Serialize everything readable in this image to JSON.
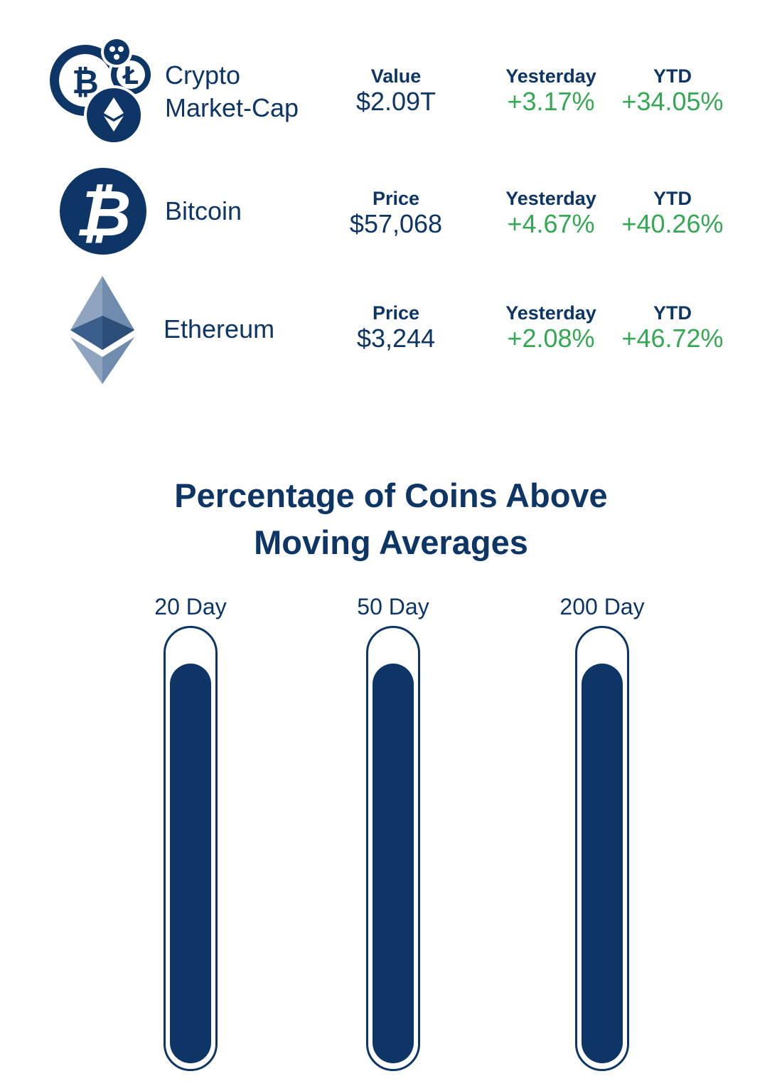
{
  "rows": [
    {
      "name_line1": "Crypto",
      "name_line2": "Market-Cap",
      "icon": "crypto-coins-icon",
      "primary_label": "Value",
      "primary_value": "$2.09T",
      "yesterday_label": "Yesterday",
      "yesterday_value": "+3.17%",
      "ytd_label": "YTD",
      "ytd_value": "+34.05%"
    },
    {
      "name": "Bitcoin",
      "icon": "bitcoin-icon",
      "primary_label": "Price",
      "primary_value": "$57,068",
      "yesterday_label": "Yesterday",
      "yesterday_value": "+4.67%",
      "ytd_label": "YTD",
      "ytd_value": "+40.26%"
    },
    {
      "name": "Ethereum",
      "icon": "ethereum-icon",
      "primary_label": "Price",
      "primary_value": "$3,244",
      "yesterday_label": "Yesterday",
      "yesterday_value": "+2.08%",
      "ytd_label": "YTD",
      "ytd_value": "+46.72%"
    }
  ],
  "moving_averages": {
    "title_line1": "Percentage of Coins Above",
    "title_line2": "Moving Averages",
    "gauges": [
      {
        "label": "20 Day",
        "level_fraction": 0.93
      },
      {
        "label": "50 Day",
        "level_fraction": 0.93
      },
      {
        "label": "200 Day",
        "level_fraction": 0.93
      }
    ]
  },
  "colors": {
    "navy": "#0d3566",
    "green": "#34a853",
    "eth_light": "#8fa4bf",
    "eth_mid": "#5b7aa0",
    "eth_dark": "#3a5f8c"
  }
}
